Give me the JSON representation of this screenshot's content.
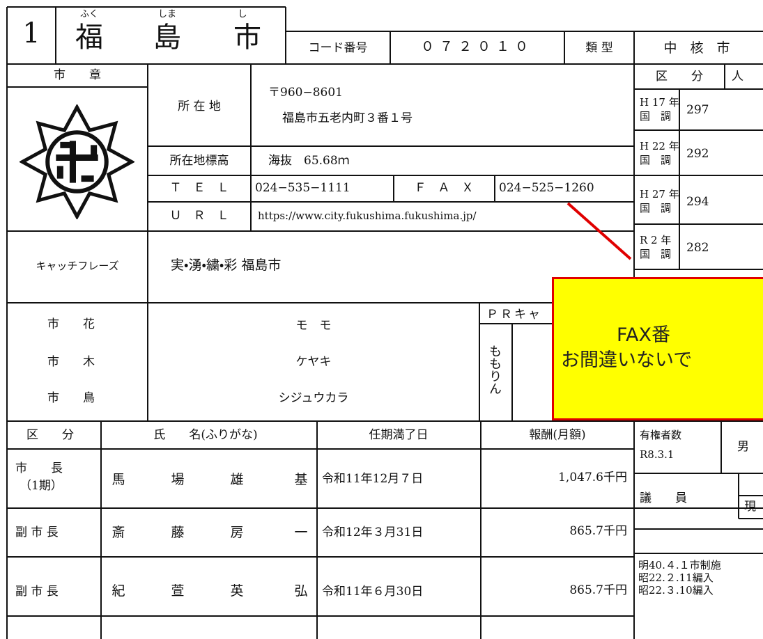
{
  "header": {
    "number": "1",
    "furigana": [
      "ふく",
      "しま",
      "し"
    ],
    "name": [
      "福",
      "島",
      "市"
    ],
    "code_label": "コード番号",
    "code": "０７２０１０",
    "type_label": "類 型",
    "type": "中　核　市"
  },
  "emblem_label": "市　　章",
  "info": {
    "address_label": "所 在 地",
    "postal": "〒960−8601",
    "address": "福島市五老内町３番１号",
    "elevation_label": "所在地標高",
    "elevation": "海抜　65.68ｍ",
    "tel_label": "Ｔ　Ｅ　Ｌ",
    "tel": "024−535−1111",
    "fax_label": "Ｆ　Ａ　Ｘ",
    "fax": "024−525−1260",
    "url_label": "Ｕ　Ｒ　Ｌ",
    "url": "https://www.city.fukushima.fukushima.jp/"
  },
  "population": {
    "headers": [
      "区　　分",
      "人"
    ],
    "rows": [
      {
        "year": "H 17 年",
        "sub": "国　調",
        "value": "297"
      },
      {
        "year": "H 22 年",
        "sub": "国　調",
        "value": "292"
      },
      {
        "year": "H 27 年",
        "sub": "国　調",
        "value": "294"
      },
      {
        "year": "R 2 年",
        "sub": "国　調",
        "value": "282"
      }
    ]
  },
  "catchphrase": {
    "label": "キャッチフレーズ",
    "text": "実・湧・繍・彩 福島市"
  },
  "symbols": [
    {
      "label": "市　　花",
      "value": "モ　モ"
    },
    {
      "label": "市　　木",
      "value": "ケヤキ"
    },
    {
      "label": "市　　鳥",
      "value": "シジュウカラ"
    }
  ],
  "pr": {
    "label": "ＰＲキャ",
    "name": "ももりん"
  },
  "callout": [
    "FAX番",
    "お間違いないで"
  ],
  "officials": {
    "headers": [
      "区　　分",
      "氏　　名(ふりがな)",
      "任期満了日",
      "報酬(月額)"
    ],
    "rows": [
      {
        "role": "市　　長",
        "term": "（1期）",
        "name": [
          "馬",
          "場",
          "雄",
          "基"
        ],
        "end": "令和11年12月７日",
        "pay": "1,047.6千円"
      },
      {
        "role": "副 市 長",
        "term": "",
        "name": [
          "斎",
          "藤",
          "房",
          "一"
        ],
        "end": "令和12年３月31日",
        "pay": "865.7千円"
      },
      {
        "role": "副 市 長",
        "term": "",
        "name": [
          "紀",
          "萱",
          "英",
          "弘"
        ],
        "end": "令和11年６月30日",
        "pay": "865.7千円"
      }
    ]
  },
  "voters": {
    "label": "有権者数",
    "date": "R8.3.1",
    "male": "男"
  },
  "council": {
    "label": "議　　員",
    "current": "現"
  },
  "history": [
    "明40.４.１市制施",
    "昭22.２.11編入",
    "昭22.３.10編入"
  ]
}
